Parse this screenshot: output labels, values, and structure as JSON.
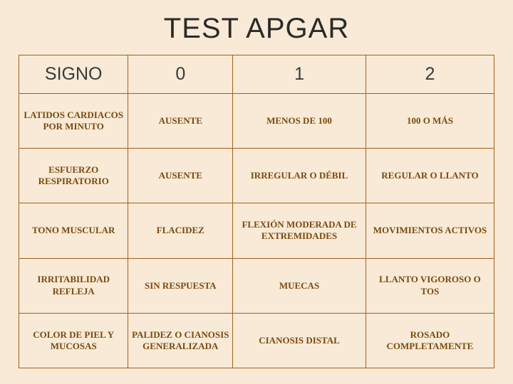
{
  "title": "TEST  APGAR",
  "background_color": "#f8ead6",
  "border_color": "#a06020",
  "header_text_color": "#3a3a3a",
  "cell_text_color": "#7a4a10",
  "title_fontsize": 40,
  "header_fontsize": 25,
  "cell_fontsize": 13,
  "columns": [
    "SIGNO",
    "0",
    "1",
    "2"
  ],
  "column_widths_pct": [
    23,
    22,
    28,
    27
  ],
  "rows": [
    {
      "label": "LATIDOS CARDIACOS POR MINUTO",
      "c0": "AUSENTE",
      "c1": "MENOS DE 100",
      "c2": "100 O MÁS"
    },
    {
      "label": "ESFUERZO RESPIRATORIO",
      "c0": "AUSENTE",
      "c1": "IRREGULAR O DÉBIL",
      "c2": "REGULAR O LLANTO"
    },
    {
      "label": "TONO MUSCULAR",
      "c0": "FLACIDEZ",
      "c1": "FLEXIÓN MODERADA DE EXTREMIDADES",
      "c2": "MOVIMIENTOS ACTIVOS"
    },
    {
      "label": "IRRITABILIDAD REFLEJA",
      "c0": "SIN RESPUESTA",
      "c1": "MUECAS",
      "c2": "LLANTO VIGOROSO O TOS"
    },
    {
      "label": "COLOR DE PIEL Y MUCOSAS",
      "c0": "PALIDEZ O CIANOSIS GENERALIZADA",
      "c1": "CIANOSIS DISTAL",
      "c2": "ROSADO COMPLETAMENTE"
    }
  ]
}
